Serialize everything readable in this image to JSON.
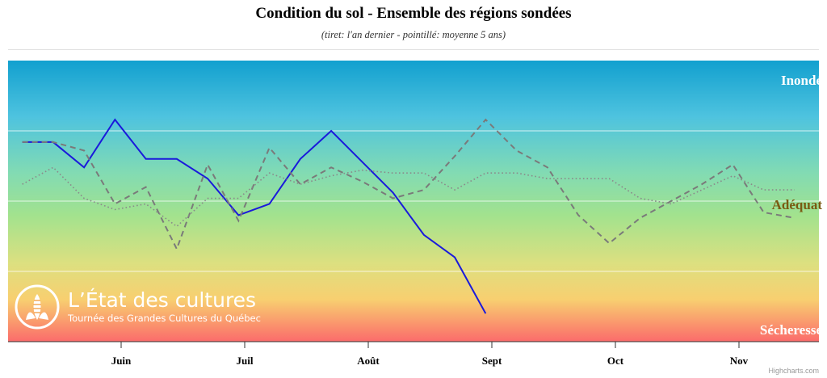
{
  "chart_data": {
    "type": "line",
    "title": "Condition du sol - Ensemble des régions sondées",
    "subtitle": "(tiret: l'an dernier - pointillé: moyenne 5 ans)",
    "x_tick_labels": [
      "Juin",
      "Juil",
      "Août",
      "Sept",
      "Oct",
      "Nov"
    ],
    "y_band_labels": {
      "top": "Inondé",
      "middle": "Adéquat",
      "bottom": "Sécheresse"
    },
    "ylim": [
      0,
      100
    ],
    "grid": true,
    "colors": {
      "current": "#1a1adb",
      "last_year": "#7a7a7a",
      "five_year": "#8a8a8a",
      "label_top": "#ffffff",
      "label_middle": "#7a5a12",
      "label_bottom": "#ffffff"
    },
    "series": [
      {
        "style": "solid",
        "x": [
          0.2,
          0.45,
          0.7,
          0.95,
          1.2,
          1.45,
          1.7,
          1.95,
          2.2,
          2.45,
          2.7,
          2.95,
          3.2,
          3.45,
          3.7,
          3.95
        ],
        "values": [
          71,
          71,
          62,
          79,
          65,
          65,
          58,
          45,
          49,
          65,
          75,
          64,
          53,
          38,
          30,
          10
        ]
      },
      {
        "style": "dashed",
        "x": [
          0.2,
          0.45,
          0.7,
          0.95,
          1.2,
          1.45,
          1.7,
          1.95,
          2.2,
          2.45,
          2.7,
          2.95,
          3.2,
          3.45,
          3.7,
          3.95,
          4.2,
          4.45,
          4.7,
          4.95,
          5.2,
          5.45,
          5.7,
          5.95,
          6.2,
          6.45
        ],
        "values": [
          71,
          71,
          68,
          49,
          55,
          33,
          63,
          43,
          69,
          56,
          62,
          57,
          51,
          54,
          66,
          79,
          68,
          62,
          45,
          35,
          44,
          50,
          56,
          63,
          46,
          44
        ]
      },
      {
        "style": "dotted",
        "x": [
          0.2,
          0.45,
          0.7,
          0.95,
          1.2,
          1.45,
          1.7,
          1.95,
          2.2,
          2.45,
          2.7,
          2.95,
          3.2,
          3.45,
          3.7,
          3.95,
          4.2,
          4.45,
          4.7,
          4.95,
          5.2,
          5.45,
          5.7,
          5.95,
          6.2,
          6.45
        ],
        "values": [
          56,
          62,
          51,
          47,
          49,
          41,
          51,
          51,
          60,
          56,
          59,
          61,
          60,
          60,
          54,
          60,
          60,
          58,
          58,
          58,
          51,
          49,
          54,
          59,
          54,
          54
        ]
      }
    ]
  },
  "logo": {
    "title": "L’État des cultures",
    "subtitle": "Tournée des Grandes Cultures du Québec"
  },
  "credits": "Highcharts.com"
}
